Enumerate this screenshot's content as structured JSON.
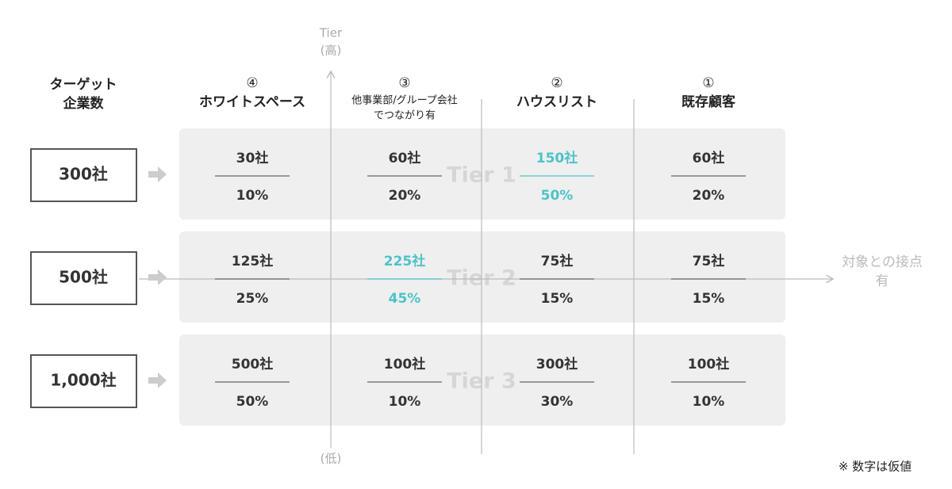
{
  "header_label": [
    "ターゲット",
    "企業数"
  ],
  "columns": [
    {
      "number": "④",
      "lines": [
        "ホワイトスペース"
      ]
    },
    {
      "number": "③",
      "lines": [
        "他事業部/グループ会社",
        "でつながり有"
      ]
    },
    {
      "number": "②",
      "lines": [
        "ハウスリスト"
      ]
    },
    {
      "number": "①",
      "lines": [
        "既存顧客"
      ]
    }
  ],
  "y_axis": {
    "top": [
      "Tier",
      "(高)"
    ],
    "bottom": "(低)"
  },
  "x_axis": {
    "label": [
      "対象との接点",
      "有"
    ]
  },
  "rows": [
    {
      "target": "300社",
      "tier": "Tier 1",
      "cells": [
        {
          "count": "30社",
          "share": "10%",
          "color": "#333333"
        },
        {
          "count": "60社",
          "share": "20%",
          "color": "#333333"
        },
        {
          "count": "150社",
          "share": "50%",
          "color": "#4cc3c8"
        },
        {
          "count": "60社",
          "share": "20%",
          "color": "#333333"
        }
      ]
    },
    {
      "target": "500社",
      "tier": "Tier 2",
      "cells": [
        {
          "count": "125社",
          "share": "25%",
          "color": "#333333"
        },
        {
          "count": "225社",
          "share": "45%",
          "color": "#4cc3c8"
        },
        {
          "count": "75社",
          "share": "15%",
          "color": "#333333"
        },
        {
          "count": "75社",
          "share": "15%",
          "color": "#333333"
        }
      ]
    },
    {
      "target": "1,000社",
      "tier": "Tier 3",
      "cells": [
        {
          "count": "500社",
          "share": "50%",
          "color": "#333333"
        },
        {
          "count": "100社",
          "share": "10%",
          "color": "#333333"
        },
        {
          "count": "300社",
          "share": "30%",
          "color": "#333333"
        },
        {
          "count": "100社",
          "share": "10%",
          "color": "#333333"
        }
      ]
    }
  ],
  "note": "※ 数字は仮値"
}
